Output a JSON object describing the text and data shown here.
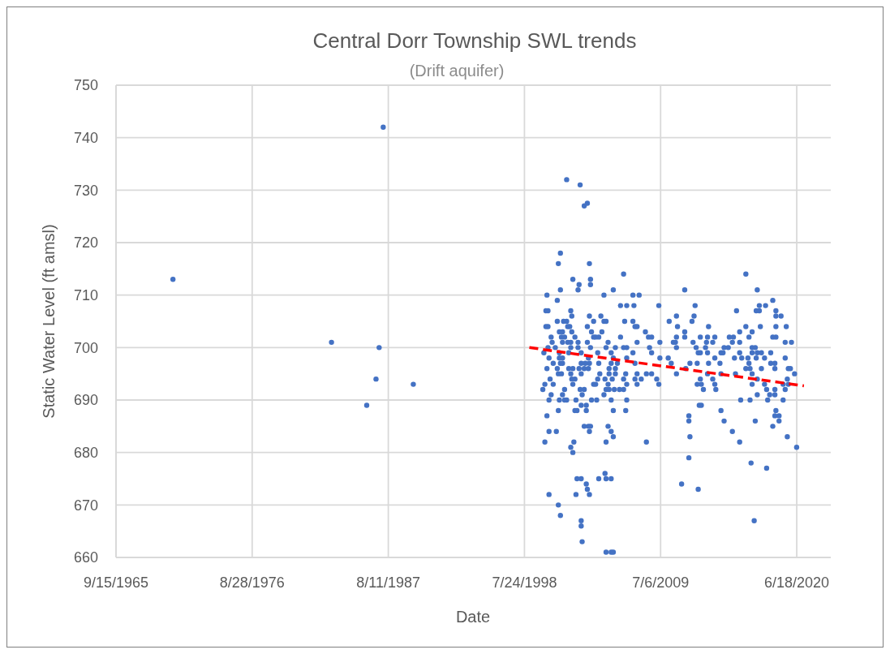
{
  "chart_data": {
    "type": "scatter",
    "title": "Central Dorr Township SWL trends",
    "subtitle": "(Drift aquifer)",
    "xlabel": "Date",
    "ylabel": "Static Water Level (ft amsl)",
    "xlim": [
      "1965-09-15",
      "2023-03-15"
    ],
    "xticks": [
      {
        "value": "1965-09-15",
        "label": "9/15/1965"
      },
      {
        "value": "1976-08-28",
        "label": "8/28/1976"
      },
      {
        "value": "1987-08-11",
        "label": "8/11/1987"
      },
      {
        "value": "1998-07-24",
        "label": "7/24/1998"
      },
      {
        "value": "2009-07-06",
        "label": "7/6/2009"
      },
      {
        "value": "2020-06-18",
        "label": "6/18/2020"
      }
    ],
    "ylim": [
      660,
      750
    ],
    "yticks": [
      660,
      670,
      680,
      690,
      700,
      710,
      720,
      730,
      740,
      750
    ],
    "grid": true,
    "series": [
      {
        "color": "#4472c4",
        "marker": "circle",
        "x": [
          "1970-04",
          "1983-01",
          "1985-11",
          "1986-08",
          "1986-11",
          "1987-03",
          "1989-08",
          "2001-12",
          "2003-01",
          "2003-05",
          "2003-08",
          "2001-06",
          "2001-04",
          "2003-10",
          "2006-07",
          "2002-06",
          "2003-11",
          "2003-11",
          "2002-12",
          "2002-11",
          "2001-06",
          "2005-09",
          "2000-05",
          "2004-12",
          "2007-04",
          "2007-10",
          "2001-03",
          "2006-04",
          "2006-10",
          "2007-05",
          "2009-05",
          "2000-04",
          "2000-06",
          "2002-04",
          "2002-05",
          "2003-10",
          "2004-09",
          "2001-03",
          "2001-09",
          "2001-12",
          "2004-12",
          "2005-02",
          "2006-08",
          "2007-04",
          "2004-02",
          "2003-08",
          "2000-04",
          "2000-06",
          "2002-01",
          "2002-03",
          "2007-06",
          "2007-08",
          "2001-05",
          "2001-08",
          "2002-05",
          "2003-12",
          "2004-10",
          "2008-04",
          "2000-09",
          "2001-07",
          "2001-10",
          "2002-08",
          "2004-02",
          "2004-04",
          "2004-07",
          "2006-04",
          "2008-07",
          "2008-10",
          "2000-10",
          "2001-08",
          "2002-01",
          "2002-04",
          "2002-11",
          "2003-08",
          "2005-04",
          "2007-08",
          "2009-06",
          "2000-06",
          "2001-01",
          "2002-04",
          "2002-11",
          "2003-11",
          "2005-02",
          "2005-11",
          "2006-07",
          "2006-10",
          "2008-08",
          "2000-02",
          "2001-05",
          "2002-02",
          "2003-02",
          "2004-06",
          "2005-07",
          "2007-04",
          "2008-10",
          "2000-07",
          "2001-05",
          "2001-08",
          "2003-09",
          "2005-09",
          "2006-10",
          "2009-06",
          "2000-11",
          "2001-06",
          "2001-08",
          "2003-02",
          "2003-06",
          "2003-10",
          "2004-07",
          "2005-07",
          "2006-01",
          "2007-06",
          "2000-05",
          "2001-03",
          "2002-02",
          "2002-06",
          "2002-12",
          "2003-05",
          "2003-09",
          "2005-05",
          "2005-11",
          "2001-04",
          "2001-07",
          "2002-04",
          "2003-02",
          "2004-08",
          "2005-05",
          "2005-11",
          "2006-09",
          "2007-08",
          "2008-05",
          "2008-10",
          "2000-08",
          "2002-05",
          "2002-08",
          "2004-06",
          "2005-01",
          "2005-08",
          "2006-07",
          "2007-06",
          "2007-12",
          "2009-03",
          "2000-03",
          "2000-11",
          "2002-06",
          "2004-02",
          "2004-04",
          "2005-04",
          "2006-10",
          "2007-08",
          "2009-05",
          "2000-01",
          "2001-10",
          "2003-01",
          "2003-05",
          "2005-02",
          "2005-05",
          "2005-10",
          "2006-03",
          "2006-07",
          "2000-09",
          "2001-08",
          "2003-03",
          "2004-12",
          "2000-07",
          "2001-05",
          "2001-10",
          "2001-12",
          "2002-09",
          "2003-12",
          "2004-05",
          "2005-07",
          "2006-10",
          "2003-02",
          "2003-07",
          "2001-04",
          "2002-08",
          "2002-10",
          "2003-07",
          "2005-09",
          "2006-09",
          "2000-05",
          "2003-05",
          "2003-09",
          "2003-11",
          "2005-04",
          "2000-07",
          "2001-02",
          "2003-10",
          "2005-07",
          "2005-09",
          "2000-03",
          "2002-07",
          "2005-02",
          "2008-05",
          "2002-04",
          "2002-06",
          "2002-10",
          "2003-02",
          "2004-07",
          "2005-02",
          "2005-07",
          "2005-01",
          "2003-07",
          "2003-08",
          "2003-10",
          "2000-07",
          "2002-09",
          "2001-04",
          "2001-06",
          "2003-02",
          "2003-02",
          "2003-03",
          "2005-02",
          "2005-07",
          "2005-09",
          "2016-05",
          "2011-06",
          "2017-04",
          "2018-07",
          "2012-04",
          "2017-06",
          "2017-12",
          "2015-08",
          "2017-03",
          "2017-06",
          "2018-10",
          "2010-10",
          "2012-03",
          "2018-10",
          "2019-03",
          "2010-03",
          "2012-01",
          "2010-11",
          "2013-05",
          "2016-05",
          "2017-07",
          "2018-10",
          "2019-08",
          "2011-06",
          "2015-11",
          "2016-11",
          "2010-10",
          "2011-06",
          "2012-09",
          "2013-04",
          "2013-11",
          "2015-01",
          "2015-05",
          "2016-08",
          "2018-07",
          "2018-10",
          "2010-07",
          "2010-09",
          "2012-02",
          "2013-03",
          "2013-09",
          "2015-04",
          "2015-11",
          "2019-07",
          "2020-01",
          "2010-10",
          "2012-05",
          "2013-02",
          "2014-08",
          "2014-12",
          "2016-11",
          "2017-02",
          "2012-07",
          "2012-09",
          "2013-04",
          "2014-05",
          "2014-07",
          "2015-11",
          "2016-11",
          "2017-04",
          "2017-08",
          "2018-05",
          "2010-02",
          "2013-11",
          "2015-06",
          "2016-01",
          "2016-07",
          "2017-03",
          "2017-11",
          "2019-07",
          "2010-05",
          "2011-11",
          "2012-06",
          "2013-05",
          "2014-04",
          "2016-08",
          "2018-05",
          "2018-09",
          "2011-07",
          "2016-05",
          "2016-09",
          "2017-08",
          "2018-09",
          "2019-10",
          "2019-12",
          "2010-10",
          "2013-04",
          "2014-05",
          "2015-07",
          "2016-11",
          "2020-04",
          "2012-09",
          "2013-09",
          "2017-04",
          "2019-09",
          "2012-06",
          "2012-10",
          "2013-11",
          "2016-11",
          "2017-11",
          "2019-05",
          "2019-10",
          "2012-12",
          "2013-12",
          "2018-01",
          "2018-09",
          "2019-07",
          "2017-04",
          "2018-04",
          "2018-09",
          "2015-12",
          "2016-09",
          "2018-02",
          "2019-05",
          "2012-08",
          "2012-10",
          "2018-10",
          "2014-05",
          "2011-10",
          "2018-09",
          "2019-01",
          "2011-10",
          "2014-08",
          "2017-02",
          "2019-01",
          "2018-07",
          "2015-04",
          "2011-11",
          "2019-09",
          "2015-11",
          "2020-06",
          "2011-10",
          "2016-10",
          "2018-01",
          "2011-03",
          "2012-07",
          "2017-01"
        ],
        "values": [
          713,
          701,
          689,
          694,
          700,
          742,
          693,
          732,
          731,
          727,
          727.5,
          718,
          716,
          716,
          714,
          713,
          713,
          712,
          712,
          711,
          711,
          711,
          710,
          710,
          710,
          710,
          709,
          708,
          708,
          708,
          708,
          707,
          707,
          707,
          706,
          706,
          706,
          705,
          705,
          705,
          705,
          705,
          705,
          705,
          705,
          704,
          704,
          704,
          704,
          704,
          704,
          704,
          703,
          703,
          703,
          703,
          703,
          703,
          702,
          702,
          702,
          702,
          702,
          702,
          702,
          702,
          702,
          702,
          701,
          701,
          701,
          701,
          701,
          701,
          701,
          701,
          701,
          700,
          700,
          700,
          700,
          700,
          700,
          700,
          700,
          700,
          700,
          699,
          699,
          699,
          699,
          699,
          699,
          699,
          699,
          698,
          698,
          698,
          698,
          698,
          698,
          698,
          697,
          697,
          697,
          697,
          697,
          697,
          697,
          697,
          697,
          697,
          696,
          696,
          696,
          696,
          696,
          696,
          696,
          696,
          696,
          695,
          695,
          695,
          695,
          695,
          695,
          695,
          695,
          695,
          695,
          695,
          694,
          694,
          694,
          694,
          694,
          694,
          694,
          694,
          694,
          694,
          693,
          693,
          693,
          693,
          693,
          693,
          693,
          693,
          693,
          692,
          692,
          692,
          692,
          692,
          692,
          692,
          692,
          692,
          691,
          691,
          691,
          691,
          690,
          690,
          690,
          690,
          690,
          690,
          690,
          690,
          690,
          689,
          689,
          688,
          688,
          688,
          688,
          688,
          688,
          687,
          685,
          685,
          685,
          685,
          684,
          684,
          684,
          684,
          683,
          682,
          682,
          682,
          682,
          681,
          680,
          675,
          675,
          675,
          675,
          675,
          676,
          674,
          673,
          672,
          672,
          672,
          670,
          668,
          667,
          666,
          663,
          661,
          661,
          661,
          714,
          711,
          711,
          709,
          708,
          708,
          708,
          707,
          707,
          707,
          707,
          706,
          706,
          706,
          706,
          705,
          705,
          704,
          704,
          704,
          704,
          704,
          704,
          703,
          703,
          703,
          702,
          702,
          702,
          702,
          702,
          702,
          702,
          702,
          702,
          702,
          701,
          701,
          701,
          701,
          701,
          701,
          701,
          701,
          701,
          700,
          700,
          700,
          700,
          700,
          700,
          700,
          699,
          699,
          699,
          699,
          699,
          699,
          699,
          699,
          699,
          699,
          698,
          698,
          698,
          698,
          698,
          698,
          698,
          698,
          697,
          697,
          697,
          697,
          697,
          697,
          697,
          697,
          696,
          696,
          696,
          696,
          696,
          696,
          696,
          695,
          695,
          695,
          695,
          695,
          695,
          694,
          694,
          694,
          694,
          693,
          693,
          693,
          693,
          693,
          693,
          693,
          692,
          692,
          692,
          692,
          692,
          691,
          691,
          691,
          690,
          690,
          690,
          690,
          689,
          689,
          688,
          688,
          687,
          687,
          687,
          686,
          686,
          686,
          686,
          685,
          684,
          683,
          683,
          682,
          681,
          679,
          678,
          677,
          674,
          673,
          667
        ]
      },
      {
        "type": "line",
        "color": "#ff0000",
        "marker": "none",
        "line_style": "dashed",
        "x": [
          "1998-12",
          "2021-01"
        ],
        "values": [
          700,
          692.7
        ]
      }
    ]
  }
}
